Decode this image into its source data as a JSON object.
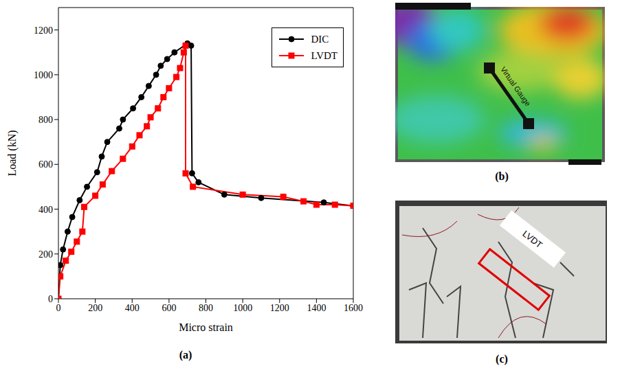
{
  "chart_data": {
    "type": "line",
    "panel": "(a)",
    "x_label": "Micro strain",
    "y_label": "Load (kN)",
    "xlim": [
      0,
      1600
    ],
    "xticks": [
      0,
      200,
      400,
      600,
      800,
      1000,
      1200,
      1400,
      1600
    ],
    "ylim": [
      0,
      1300
    ],
    "yticks": [
      0,
      200,
      400,
      600,
      800,
      1000,
      1200
    ],
    "legend": "top-right",
    "series": [
      {
        "name": "DIC",
        "color": "#000000",
        "marker": "circle",
        "x": [
          0,
          10,
          25,
          50,
          75,
          115,
          155,
          210,
          235,
          265,
          330,
          350,
          405,
          450,
          490,
          530,
          555,
          590,
          630,
          700,
          720,
          725,
          760,
          900,
          1100,
          1440,
          1600
        ],
        "values": [
          0,
          150,
          220,
          300,
          365,
          440,
          500,
          565,
          635,
          700,
          760,
          800,
          850,
          900,
          950,
          1000,
          1040,
          1070,
          1100,
          1140,
          1130,
          560,
          520,
          465,
          450,
          430,
          415
        ]
      },
      {
        "name": "LVDT",
        "color": "#ff0000",
        "marker": "square",
        "x": [
          0,
          10,
          40,
          70,
          100,
          130,
          140,
          200,
          240,
          290,
          350,
          400,
          440,
          480,
          500,
          540,
          570,
          600,
          640,
          660,
          680,
          690,
          690,
          730,
          1000,
          1220,
          1330,
          1400,
          1500,
          1600
        ],
        "values": [
          0,
          100,
          170,
          210,
          255,
          300,
          410,
          460,
          510,
          570,
          625,
          680,
          730,
          770,
          810,
          850,
          900,
          940,
          990,
          1030,
          1100,
          1130,
          560,
          500,
          465,
          455,
          435,
          420,
          420,
          415
        ]
      }
    ]
  },
  "panels": [
    {
      "label": "(b)",
      "annotation": "Virtual Gauge"
    },
    {
      "label": "(c)",
      "annotation": "LVDT"
    }
  ]
}
